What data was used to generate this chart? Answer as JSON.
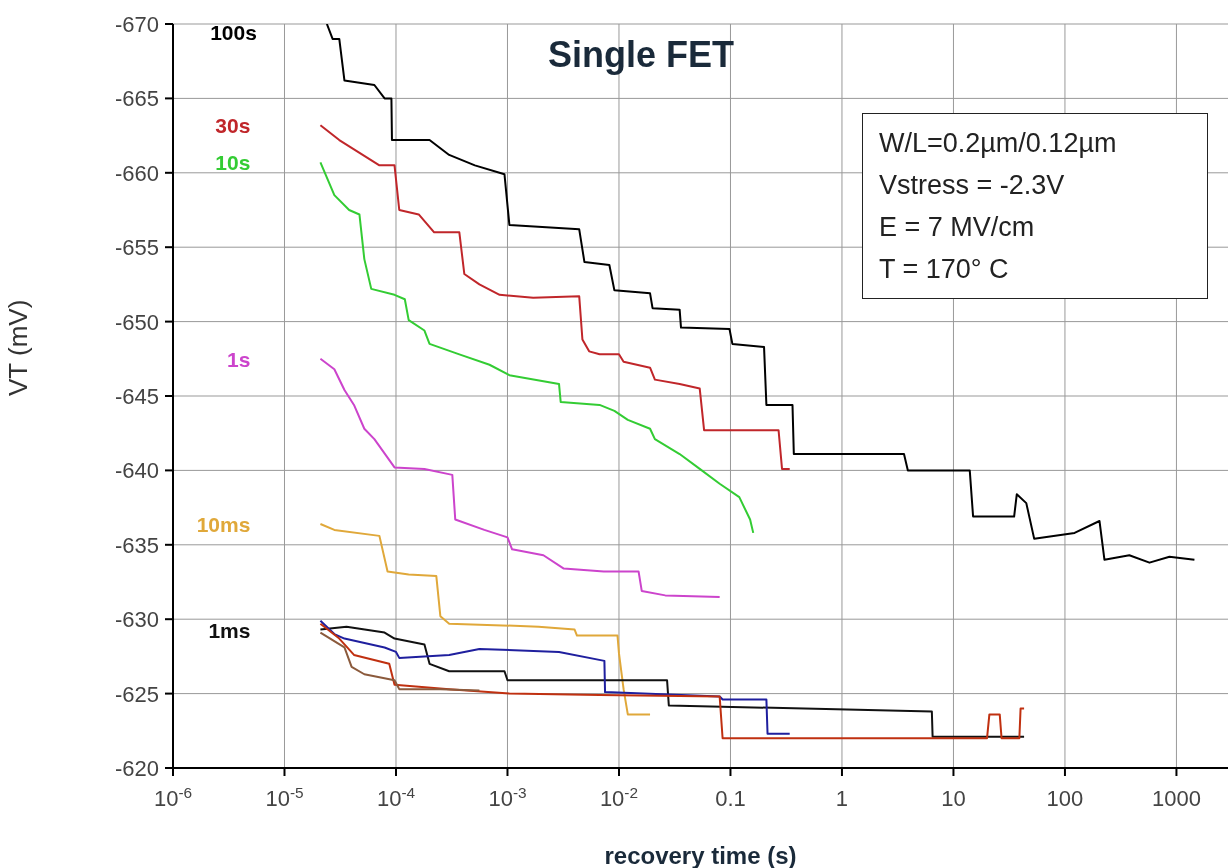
{
  "chart_data": {
    "type": "line",
    "title": "Single FET",
    "xlabel": "recovery time (s)",
    "ylabel": "VT (mV)",
    "annotations": [
      "W/L=0.2µm/0.12µm",
      "Vstress = -2.3V",
      "E = 7 MV/cm",
      "T = 170° C"
    ],
    "log": "x",
    "grid": true,
    "legend": false,
    "marker": "none",
    "line_style": "solid",
    "xlim": [
      1e-06,
      2900
    ],
    "ylim": [
      -620,
      -670
    ],
    "xticks": [
      {
        "value": 1e-06,
        "label": "10$^{-6}$"
      },
      {
        "value": 1e-05,
        "label": "10$^{-5}$"
      },
      {
        "value": 0.0001,
        "label": "10$^{-4}$"
      },
      {
        "value": 0.001,
        "label": "10$^{-3}$"
      },
      {
        "value": 0.01,
        "label": "10$^{-2}$"
      },
      0.1,
      1,
      10,
      100,
      1000
    ],
    "yticks": [
      -670,
      -665,
      -660,
      -655,
      -650,
      -645,
      -640,
      -635,
      -630,
      -625,
      -620
    ],
    "series": [
      {
        "name": "100s",
        "color": "#000000",
        "x": [
          2.4e-05,
          2.7e-05,
          3.1e-05,
          3.45e-05,
          6.4e-05,
          7.9e-05,
          9.1e-05,
          9.2e-05,
          0.0002,
          0.0003,
          0.00051,
          0.00094,
          0.00104,
          0.0044,
          0.0049,
          0.0082,
          0.0091,
          0.019,
          0.02,
          0.035,
          0.036,
          0.098,
          0.104,
          0.2,
          0.21,
          0.36,
          0.37,
          3.6,
          3.9,
          14,
          15,
          35,
          37,
          45,
          53,
          122,
          204,
          226,
          378,
          573,
          866,
          1450
        ],
        "values": [
          -670,
          -669,
          -669,
          -666.2,
          -665.9,
          -665,
          -665,
          -662.2,
          -662.2,
          -661.2,
          -660.5,
          -659.9,
          -656.5,
          -656.2,
          -654,
          -653.8,
          -652.1,
          -651.9,
          -650.9,
          -650.8,
          -649.6,
          -649.5,
          -648.5,
          -648.3,
          -644.4,
          -644.4,
          -641.1,
          -641.1,
          -640,
          -640,
          -636.9,
          -636.9,
          -638.4,
          -637.8,
          -635.4,
          -635.8,
          -636.6,
          -634,
          -634.3,
          -633.8,
          -634.2,
          -634
        ]
      },
      {
        "name": "30s",
        "color": "#c0262a",
        "x": [
          2.1e-05,
          3.1e-05,
          7.1e-05,
          9.7e-05,
          0.000107,
          0.00016,
          0.00022,
          0.00037,
          0.00041,
          0.00056,
          0.00085,
          0.0017,
          0.0044,
          0.0047,
          0.0054,
          0.0067,
          0.01,
          0.011,
          0.019,
          0.021,
          0.035,
          0.053,
          0.058,
          0.27,
          0.29,
          0.34
        ],
        "values": [
          -663.2,
          -662.2,
          -660.5,
          -660.5,
          -657.5,
          -657.2,
          -656,
          -656,
          -653.2,
          -652.5,
          -651.8,
          -651.6,
          -651.7,
          -648.8,
          -648,
          -647.8,
          -647.8,
          -647.3,
          -646.9,
          -646.1,
          -645.8,
          -645.5,
          -642.7,
          -642.7,
          -640.1,
          -640.1
        ]
      },
      {
        "name": "10s",
        "color": "#33cc33",
        "x": [
          2.1e-05,
          2.8e-05,
          3.8e-05,
          4.7e-05,
          5.2e-05,
          6e-05,
          9.7e-05,
          0.00012,
          0.00013,
          0.00018,
          0.0002,
          0.00037,
          0.00069,
          0.00104,
          0.0029,
          0.003,
          0.0067,
          0.0091,
          0.012,
          0.019,
          0.021,
          0.035,
          0.053,
          0.08,
          0.12,
          0.15,
          0.16
        ],
        "values": [
          -660.7,
          -658.5,
          -657.5,
          -657.2,
          -654.2,
          -652.2,
          -651.8,
          -651.5,
          -650.1,
          -649.4,
          -648.5,
          -647.8,
          -647.1,
          -646.4,
          -645.8,
          -644.6,
          -644.4,
          -644,
          -643.4,
          -642.8,
          -642.1,
          -641.1,
          -640.1,
          -639.1,
          -638.2,
          -636.7,
          -635.8
        ]
      },
      {
        "name": "1s",
        "color": "#cc44cc",
        "x": [
          2.1e-05,
          2.8e-05,
          3.45e-05,
          4.2e-05,
          5.2e-05,
          6.4e-05,
          9.7e-05,
          0.00018,
          0.00032,
          0.00034,
          0.00062,
          0.001,
          0.0011,
          0.0021,
          0.0032,
          0.0073,
          0.015,
          0.016,
          0.026,
          0.08
        ],
        "values": [
          -647.5,
          -646.8,
          -645.4,
          -644.4,
          -642.8,
          -642.1,
          -640.2,
          -640.1,
          -639.7,
          -636.7,
          -636,
          -635.5,
          -634.7,
          -634.3,
          -633.4,
          -633.2,
          -633.2,
          -631.9,
          -631.6,
          -631.5
        ]
      },
      {
        "name": "10ms",
        "color": "#e0a83a",
        "x": [
          2.1e-05,
          2.8e-05,
          7.1e-05,
          8.4e-05,
          0.00013,
          0.00023,
          0.00025,
          0.0003,
          0.0019,
          0.004,
          0.0042,
          0.0097,
          0.01,
          0.011,
          0.012,
          0.019
        ],
        "values": [
          -636.4,
          -636,
          -635.6,
          -633.2,
          -633,
          -632.9,
          -630.2,
          -629.7,
          -629.5,
          -629.3,
          -628.9,
          -628.9,
          -627.7,
          -625.3,
          -623.6,
          -623.6
        ]
      },
      {
        "name": "1ms",
        "color": "#111111",
        "x": [
          2.1e-05,
          3.6e-05,
          7.9e-05,
          9.7e-05,
          0.00018,
          0.0002,
          0.0003,
          0.00094,
          0.001,
          0.027,
          0.028,
          6.4,
          6.5,
          43
        ],
        "values": [
          -629.3,
          -629.5,
          -629.1,
          -628.7,
          -628.3,
          -627,
          -626.5,
          -626.5,
          -625.9,
          -625.9,
          -624.2,
          -623.8,
          -622.1,
          -622.1
        ]
      },
      {
        "color": "#1f1f9e",
        "x": [
          2.1e-05,
          2.8e-05,
          3.45e-05,
          7.9e-05,
          0.0001,
          0.000107,
          0.0003,
          0.00056,
          0.0029,
          0.0074,
          0.0075,
          0.08,
          0.085,
          0.21,
          0.215,
          0.34
        ],
        "values": [
          -629.9,
          -629,
          -628.7,
          -628.1,
          -627.8,
          -627.4,
          -627.6,
          -628,
          -627.8,
          -627.2,
          -625.1,
          -624.8,
          -624.6,
          -624.6,
          -622.3,
          -622.3
        ]
      },
      {
        "color": "#c03010",
        "x": [
          2.1e-05,
          3.1e-05,
          4.2e-05,
          8.7e-05,
          9.7e-05,
          0.0003,
          0.00104,
          0.0067,
          0.08,
          0.085,
          6.1,
          20,
          21,
          26,
          27,
          39,
          40,
          43
        ],
        "values": [
          -629.7,
          -628.7,
          -627.6,
          -627,
          -625.6,
          -625.3,
          -625,
          -624.9,
          -624.8,
          -622,
          -622,
          -622,
          -623.6,
          -623.6,
          -622,
          -622,
          -624,
          -624
        ]
      },
      {
        "color": "#8b5a3c",
        "x": [
          2.1e-05,
          3.45e-05,
          4e-05,
          5.2e-05,
          9.7e-05,
          0.000107,
          0.00025,
          0.00056
        ],
        "values": [
          -629.1,
          -628.1,
          -626.8,
          -626.3,
          -625.9,
          -625.3,
          -625.3,
          -625.2
        ]
      }
    ]
  }
}
